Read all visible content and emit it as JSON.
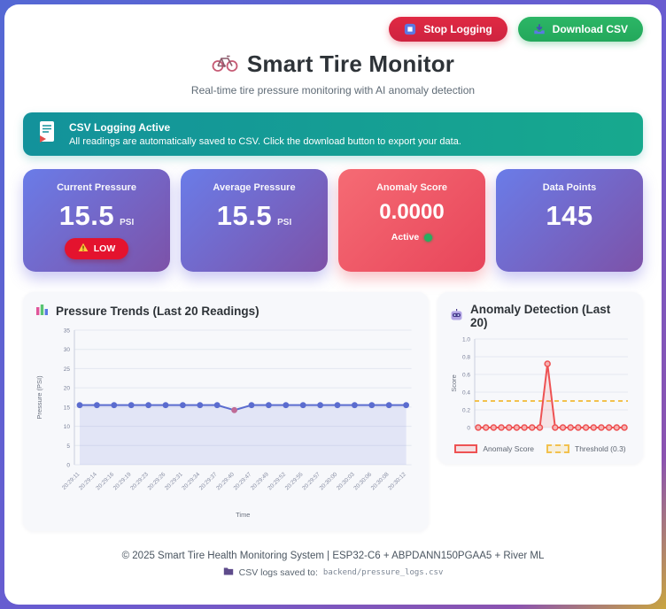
{
  "toolbar": {
    "stop_logging": "Stop Logging",
    "download_csv": "Download CSV"
  },
  "header": {
    "title": "Smart Tire Monitor",
    "subtitle": "Real-time tire pressure monitoring with AI anomaly detection"
  },
  "banner": {
    "title": "CSV Logging Active",
    "message": "All readings are automatically saved to CSV. Click the download button to export your data."
  },
  "stats": {
    "current": {
      "label": "Current Pressure",
      "value": "15.5",
      "unit": "PSI",
      "badge": "LOW"
    },
    "average": {
      "label": "Average Pressure",
      "value": "15.5",
      "unit": "PSI"
    },
    "anomaly": {
      "label": "Anomaly Score",
      "value": "0.0000",
      "status": "Active"
    },
    "points": {
      "label": "Data Points",
      "value": "145"
    }
  },
  "colors": {
    "pressure_line": "#5b6ccf",
    "pressure_fill": "rgba(118,131,222,0.16)",
    "pressure_anomaly_point": "#bf6b96",
    "anomaly_line": "#ee5253",
    "anomaly_point_fill": "#f5b3b3",
    "anomaly_fill": "rgba(238,82,83,0.13)",
    "threshold": "#f2c14e",
    "grid": "#e4e7f0"
  },
  "chart_data": [
    {
      "type": "line",
      "title": "Pressure Trends (Last 20 Readings)",
      "xlabel": "Time",
      "ylabel": "Pressure (PSI)",
      "ylim": [
        0,
        35
      ],
      "yticks": [
        0,
        5,
        10,
        15,
        20,
        25,
        30,
        35
      ],
      "x": [
        "20:29:11",
        "20:29:14",
        "20:29:16",
        "20:29:19",
        "20:29:23",
        "20:29:26",
        "20:29:31",
        "20:29:34",
        "20:29:37",
        "20:29:40",
        "20:29:47",
        "20:29:49",
        "20:29:52",
        "20:29:55",
        "20:29:57",
        "20:30:00",
        "20:30:03",
        "20:30:06",
        "20:30:08",
        "20:30:12"
      ],
      "values": [
        15.5,
        15.5,
        15.5,
        15.5,
        15.5,
        15.5,
        15.5,
        15.5,
        15.5,
        14.2,
        15.5,
        15.5,
        15.5,
        15.5,
        15.5,
        15.5,
        15.5,
        15.5,
        15.5,
        15.5
      ],
      "anomaly_index": 9,
      "grid": true,
      "legend_position": "none"
    },
    {
      "type": "line",
      "title": "Anomaly Detection (Last 20)",
      "xlabel": "",
      "ylabel": "Score",
      "ylim": [
        0,
        1
      ],
      "yticks": [
        0,
        0.2,
        0.4,
        0.6,
        0.8,
        1
      ],
      "ytick_labels": [
        "0",
        "0.2",
        "0.4",
        "0.6",
        "0.8",
        "1.0"
      ],
      "values": [
        0,
        0,
        0,
        0,
        0,
        0,
        0,
        0,
        0,
        0.72,
        0,
        0,
        0,
        0,
        0,
        0,
        0,
        0,
        0,
        0
      ],
      "threshold": 0.3,
      "legend": [
        "Anomaly Score",
        "Threshold (0.3)"
      ],
      "legend_position": "bottom",
      "grid": true
    }
  ],
  "footer": {
    "copyright": "© 2025 Smart Tire Health Monitoring System | ESP32-C6 + ABPDANN150PGAA5 + River ML",
    "csv_note": "CSV logs saved to:",
    "csv_path": "backend/pressure_logs.csv"
  }
}
